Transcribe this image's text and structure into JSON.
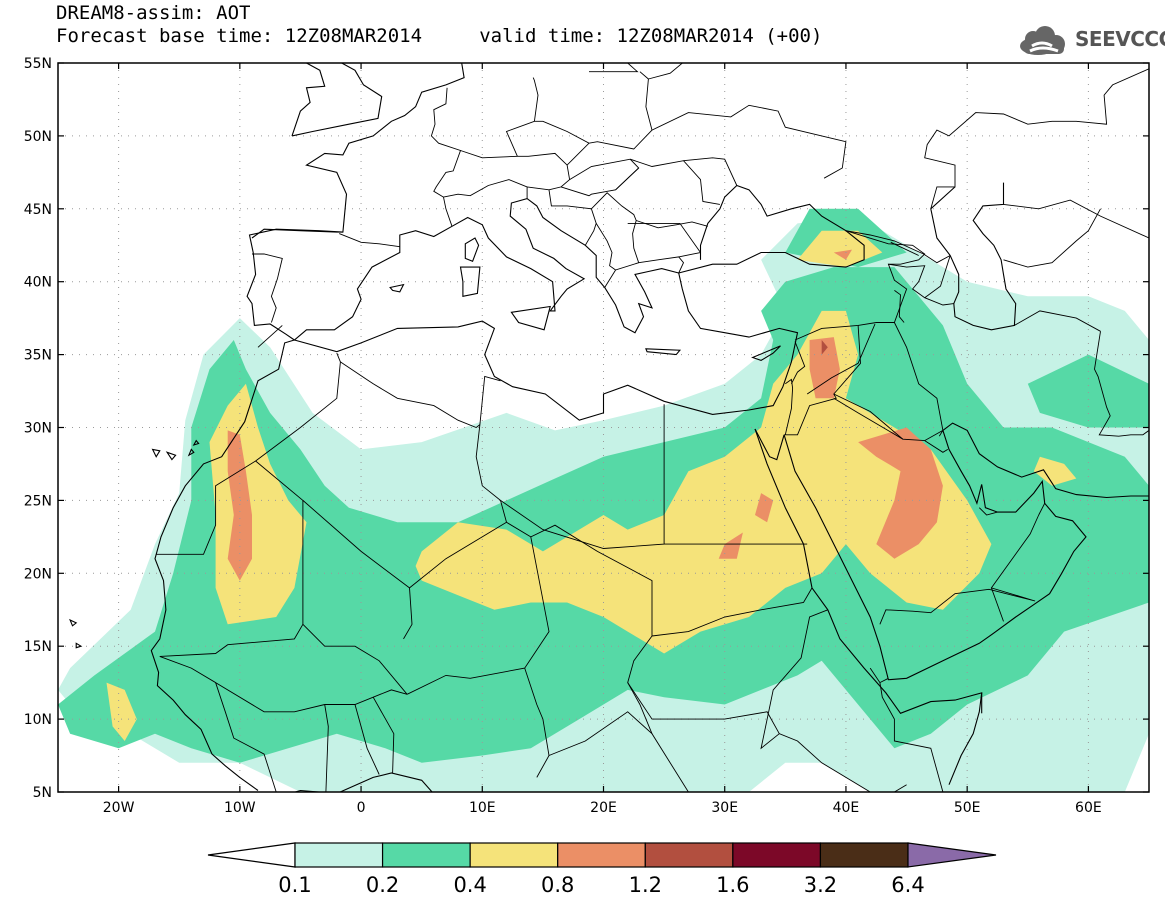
{
  "title": {
    "line1": "DREAM8-assim: AOT",
    "line2": "Forecast base time: 12Z08MAR2014     valid time: 12Z08MAR2014 (+00)"
  },
  "logo": {
    "text": "SEEVCCC",
    "icon": "cloud-logo-icon"
  },
  "map": {
    "lon_range": [
      -25,
      65
    ],
    "lat_range": [
      5,
      55
    ],
    "lat_ticks": [
      {
        "v": 55,
        "label": "55N"
      },
      {
        "v": 50,
        "label": "50N"
      },
      {
        "v": 45,
        "label": "45N"
      },
      {
        "v": 40,
        "label": "40N"
      },
      {
        "v": 35,
        "label": "35N"
      },
      {
        "v": 30,
        "label": "30N"
      },
      {
        "v": 25,
        "label": "25N"
      },
      {
        "v": 20,
        "label": "20N"
      },
      {
        "v": 15,
        "label": "15N"
      },
      {
        "v": 10,
        "label": "10N"
      },
      {
        "v": 5,
        "label": "5N"
      }
    ],
    "lon_ticks": [
      {
        "v": -20,
        "label": "20W"
      },
      {
        "v": -10,
        "label": "10W"
      },
      {
        "v": 0,
        "label": "0"
      },
      {
        "v": 10,
        "label": "10E"
      },
      {
        "v": 20,
        "label": "20E"
      },
      {
        "v": 30,
        "label": "30E"
      },
      {
        "v": 40,
        "label": "40E"
      },
      {
        "v": 50,
        "label": "50E"
      },
      {
        "v": 60,
        "label": "60E"
      }
    ],
    "grid": "dotted"
  },
  "colorbar": {
    "colors": [
      "#ffffff",
      "#c6f2e6",
      "#56d9a6",
      "#f5e37a",
      "#eb8f66",
      "#b24f3f",
      "#7c0828",
      "#4a2d17",
      "#8a6aa8"
    ],
    "labels": [
      "0.1",
      "0.2",
      "0.4",
      "0.8",
      "1.2",
      "1.6",
      "3.2",
      "6.4"
    ]
  },
  "aot_fields": [
    {
      "level": "0.1",
      "color": "#c6f2e6",
      "polygons": [
        [
          [
            -24,
            13.5
          ],
          [
            -19,
            17.5
          ],
          [
            -17,
            22
          ],
          [
            -15,
            25.5
          ],
          [
            -14.5,
            30.5
          ],
          [
            -13,
            35
          ],
          [
            -10,
            37.5
          ],
          [
            -7.5,
            35.5
          ],
          [
            -4,
            31
          ],
          [
            0,
            28.5
          ],
          [
            5,
            29
          ],
          [
            12,
            31
          ],
          [
            16,
            29.8
          ],
          [
            20,
            30.5
          ],
          [
            25,
            31.5
          ],
          [
            30,
            33
          ],
          [
            33,
            35
          ],
          [
            35,
            38
          ],
          [
            33,
            41.5
          ],
          [
            36,
            44
          ],
          [
            41,
            44.5
          ],
          [
            46,
            42
          ],
          [
            50,
            40
          ],
          [
            55,
            39
          ],
          [
            60,
            39
          ],
          [
            63,
            38
          ],
          [
            65,
            36
          ],
          [
            65,
            9
          ],
          [
            63,
            5
          ],
          [
            42,
            5
          ],
          [
            38,
            7
          ],
          [
            35,
            7
          ],
          [
            32,
            5
          ],
          [
            -5,
            5
          ],
          [
            -10,
            7
          ],
          [
            -15,
            7
          ],
          [
            -19,
            9
          ],
          [
            -23,
            10
          ],
          [
            -25,
            12
          ]
        ]
      ]
    },
    {
      "level": "0.2",
      "color": "#56d9a6",
      "polygons": [
        [
          [
            -22,
            13
          ],
          [
            -17,
            16
          ],
          [
            -15.5,
            20
          ],
          [
            -14,
            25
          ],
          [
            -14,
            30
          ],
          [
            -12.5,
            34
          ],
          [
            -10.5,
            36
          ],
          [
            -9.5,
            34
          ],
          [
            -7.5,
            31
          ],
          [
            -5,
            28.5
          ],
          [
            -3,
            26
          ],
          [
            -1,
            24.5
          ],
          [
            3,
            23.5
          ],
          [
            8,
            23.5
          ],
          [
            12,
            25
          ],
          [
            16,
            26.5
          ],
          [
            20,
            28
          ],
          [
            25,
            29
          ],
          [
            30,
            30
          ],
          [
            33,
            32
          ],
          [
            34,
            36
          ],
          [
            33,
            38
          ],
          [
            35,
            40
          ],
          [
            39,
            41
          ],
          [
            44,
            41
          ],
          [
            46,
            39
          ],
          [
            48,
            37
          ],
          [
            50,
            33
          ],
          [
            53,
            30
          ],
          [
            57,
            30
          ],
          [
            60,
            29
          ],
          [
            63,
            28
          ],
          [
            65,
            26
          ],
          [
            65,
            18
          ],
          [
            58,
            16
          ],
          [
            55,
            13
          ],
          [
            50,
            11
          ],
          [
            47,
            9
          ],
          [
            44,
            8
          ],
          [
            42,
            10
          ],
          [
            40,
            12
          ],
          [
            38,
            14
          ],
          [
            36,
            13
          ],
          [
            33,
            12
          ],
          [
            30,
            11
          ],
          [
            25,
            11.5
          ],
          [
            22,
            12
          ],
          [
            18,
            10
          ],
          [
            14,
            8
          ],
          [
            10,
            7.5
          ],
          [
            5,
            7
          ],
          [
            2,
            8
          ],
          [
            -2,
            9
          ],
          [
            -6,
            8
          ],
          [
            -10,
            7
          ],
          [
            -14,
            8
          ],
          [
            -17,
            9
          ],
          [
            -20,
            8
          ],
          [
            -24,
            9
          ],
          [
            -25,
            11
          ]
        ],
        [
          [
            35,
            42
          ],
          [
            37,
            45
          ],
          [
            41,
            45
          ],
          [
            45,
            42
          ],
          [
            41,
            41
          ]
        ],
        [
          [
            55,
            33
          ],
          [
            60,
            35
          ],
          [
            65,
            33
          ],
          [
            65,
            30
          ],
          [
            60,
            30
          ],
          [
            56,
            31
          ]
        ]
      ]
    },
    {
      "level": "0.4",
      "color": "#f5e37a",
      "polygons": [
        [
          [
            -11,
            31.5
          ],
          [
            -9.5,
            33
          ],
          [
            -8.5,
            30
          ],
          [
            -7.5,
            27.5
          ],
          [
            -6,
            25
          ],
          [
            -4.5,
            23.5
          ],
          [
            -5.5,
            19
          ],
          [
            -7,
            17
          ],
          [
            -11,
            16.5
          ],
          [
            -12,
            19
          ],
          [
            -12,
            24
          ],
          [
            -12.5,
            29
          ]
        ],
        [
          [
            -21,
            12.5
          ],
          [
            -19.5,
            12
          ],
          [
            -18.5,
            10
          ],
          [
            -19.5,
            8.5
          ],
          [
            -20.5,
            9.5
          ]
        ],
        [
          [
            5,
            21.5
          ],
          [
            8,
            23.5
          ],
          [
            12,
            23
          ],
          [
            15,
            21.5
          ],
          [
            17,
            22.5
          ],
          [
            20,
            24
          ],
          [
            22,
            23
          ],
          [
            25,
            24
          ],
          [
            27,
            27
          ],
          [
            30,
            28
          ],
          [
            33,
            30
          ],
          [
            34,
            33
          ],
          [
            36,
            35
          ],
          [
            38,
            38
          ],
          [
            40,
            38
          ],
          [
            41,
            35
          ],
          [
            40,
            32
          ],
          [
            44,
            30
          ],
          [
            47,
            28.5
          ],
          [
            50,
            25
          ],
          [
            52,
            22
          ],
          [
            51,
            20
          ],
          [
            48,
            17.5
          ],
          [
            45,
            18
          ],
          [
            42,
            20
          ],
          [
            40,
            22
          ],
          [
            38,
            20
          ],
          [
            35,
            19
          ],
          [
            32,
            17
          ],
          [
            28,
            16
          ],
          [
            25,
            14.5
          ],
          [
            23,
            15.5
          ],
          [
            22,
            16
          ],
          [
            20,
            17
          ],
          [
            17,
            18
          ],
          [
            14,
            18
          ],
          [
            11,
            17.5
          ],
          [
            8,
            18.5
          ],
          [
            5,
            19.5
          ],
          [
            4.5,
            20.5
          ]
        ],
        [
          [
            36,
            41.5
          ],
          [
            38,
            43.5
          ],
          [
            41,
            43.5
          ],
          [
            43,
            42
          ],
          [
            40,
            41
          ]
        ],
        [
          [
            56,
            28
          ],
          [
            58,
            27.5
          ],
          [
            59,
            26.5
          ],
          [
            57,
            26
          ],
          [
            55.5,
            27
          ]
        ]
      ]
    },
    {
      "level": "0.8",
      "color": "#eb8f66",
      "polygons": [
        [
          [
            -11,
            29.8
          ],
          [
            -10,
            29.5
          ],
          [
            -9.5,
            27
          ],
          [
            -9,
            24
          ],
          [
            -9,
            21
          ],
          [
            -10,
            19.5
          ],
          [
            -11,
            21
          ],
          [
            -10.5,
            24
          ],
          [
            -11,
            27
          ]
        ],
        [
          [
            37,
            36
          ],
          [
            39,
            36.2
          ],
          [
            39.5,
            34
          ],
          [
            39,
            32
          ],
          [
            37.5,
            32
          ],
          [
            37,
            34
          ]
        ],
        [
          [
            41,
            29
          ],
          [
            45,
            30
          ],
          [
            47,
            28.5
          ],
          [
            48,
            26
          ],
          [
            47.5,
            23.5
          ],
          [
            46,
            22
          ],
          [
            44,
            21
          ],
          [
            42.5,
            22
          ],
          [
            44,
            25
          ],
          [
            44.5,
            27
          ],
          [
            42.5,
            28
          ]
        ],
        [
          [
            33,
            25.5
          ],
          [
            34,
            25
          ],
          [
            33.5,
            23.5
          ],
          [
            32.5,
            24
          ]
        ],
        [
          [
            30,
            22
          ],
          [
            31.5,
            22.8
          ],
          [
            31,
            21
          ],
          [
            29.5,
            21
          ]
        ],
        [
          [
            39,
            42
          ],
          [
            40.5,
            42.2
          ],
          [
            40,
            41.5
          ]
        ]
      ]
    },
    {
      "level": "1.2",
      "color": "#b24f3f",
      "polygons": [
        [
          [
            38,
            36
          ],
          [
            38.5,
            35.5
          ],
          [
            38,
            35
          ]
        ]
      ]
    }
  ]
}
